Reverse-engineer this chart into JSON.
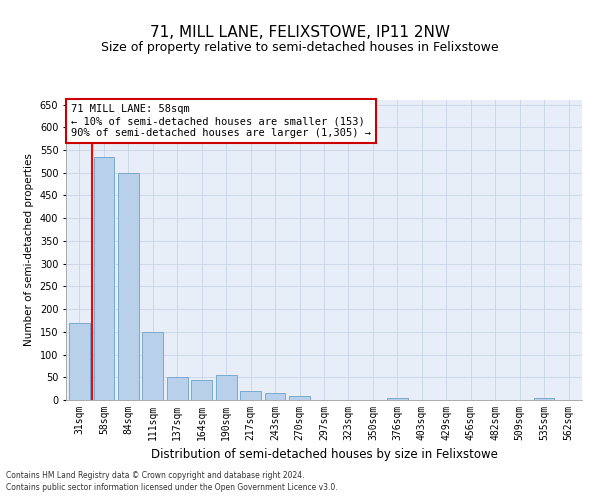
{
  "title": "71, MILL LANE, FELIXSTOWE, IP11 2NW",
  "subtitle": "Size of property relative to semi-detached houses in Felixstowe",
  "xlabel": "Distribution of semi-detached houses by size in Felixstowe",
  "ylabel": "Number of semi-detached properties",
  "categories": [
    "31sqm",
    "58sqm",
    "84sqm",
    "111sqm",
    "137sqm",
    "164sqm",
    "190sqm",
    "217sqm",
    "243sqm",
    "270sqm",
    "297sqm",
    "323sqm",
    "350sqm",
    "376sqm",
    "403sqm",
    "429sqm",
    "456sqm",
    "482sqm",
    "509sqm",
    "535sqm",
    "562sqm"
  ],
  "values": [
    170,
    535,
    500,
    150,
    50,
    45,
    55,
    20,
    15,
    8,
    0,
    0,
    0,
    5,
    0,
    0,
    0,
    0,
    0,
    5,
    0
  ],
  "bar_color": "#b8d0ea",
  "bar_edge_color": "#7aaad0",
  "red_line_x": 0.5,
  "annotation_title": "71 MILL LANE: 58sqm",
  "annotation_line1": "← 10% of semi-detached houses are smaller (153)",
  "annotation_line2": "90% of semi-detached houses are larger (1,305) →",
  "annotation_box_facecolor": "#ffffff",
  "annotation_box_edgecolor": "#cc0000",
  "ylim": [
    0,
    660
  ],
  "yticks": [
    0,
    50,
    100,
    150,
    200,
    250,
    300,
    350,
    400,
    450,
    500,
    550,
    600,
    650
  ],
  "grid_color": "#c8d4e8",
  "bg_color": "#e8eef8",
  "footer1": "Contains HM Land Registry data © Crown copyright and database right 2024.",
  "footer2": "Contains public sector information licensed under the Open Government Licence v3.0.",
  "title_fontsize": 11,
  "subtitle_fontsize": 9,
  "xlabel_fontsize": 8.5,
  "ylabel_fontsize": 7.5,
  "tick_fontsize": 7,
  "annot_fontsize": 7.5,
  "footer_fontsize": 5.5
}
